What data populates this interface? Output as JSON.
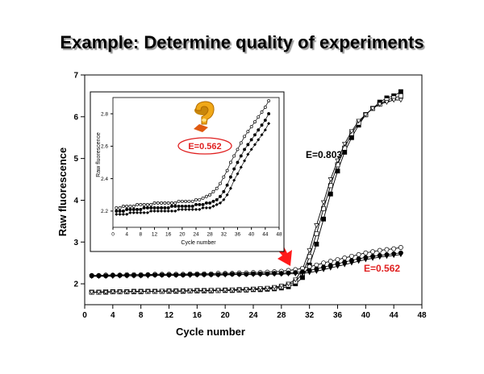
{
  "slide": {
    "title": "Example: Determine quality of experiments"
  },
  "chart_data": [
    {
      "type": "scatter",
      "xlabel": "Cycle number",
      "ylabel": "Raw fluorescence",
      "xlim": [
        0,
        48
      ],
      "ylim": [
        1.5,
        7
      ],
      "xticks": [
        0,
        4,
        8,
        12,
        16,
        20,
        24,
        28,
        32,
        36,
        40,
        44,
        48
      ],
      "yticks": [
        2,
        3,
        4,
        5,
        6,
        7
      ],
      "annotations": [
        {
          "text": "E=0.803",
          "color": "#000000"
        },
        {
          "text": "E=0.562",
          "color": "#e02020"
        }
      ],
      "marker_colors": {
        "arrow": "#ff1a1a",
        "annotation_red": "#e02020"
      },
      "series": [
        {
          "marker": "square-filled",
          "group": "E=0.803",
          "x": [
            1,
            2,
            3,
            4,
            5,
            6,
            7,
            8,
            9,
            10,
            11,
            12,
            13,
            14,
            15,
            16,
            17,
            18,
            19,
            20,
            21,
            22,
            23,
            24,
            25,
            26,
            27,
            28,
            29,
            30,
            31,
            32,
            33,
            34,
            35,
            36,
            37,
            38,
            39,
            40,
            41,
            42,
            43,
            44,
            45
          ],
          "y": [
            1.8,
            1.8,
            1.8,
            1.81,
            1.81,
            1.81,
            1.81,
            1.81,
            1.82,
            1.82,
            1.82,
            1.82,
            1.82,
            1.82,
            1.83,
            1.83,
            1.83,
            1.83,
            1.84,
            1.84,
            1.84,
            1.85,
            1.85,
            1.86,
            1.86,
            1.87,
            1.88,
            1.9,
            1.93,
            2.0,
            2.15,
            2.45,
            2.95,
            3.55,
            4.15,
            4.7,
            5.15,
            5.5,
            5.8,
            6.05,
            6.2,
            6.35,
            6.45,
            6.5,
            6.6
          ]
        },
        {
          "marker": "square-open",
          "group": "E=0.803",
          "x": [
            1,
            2,
            3,
            4,
            5,
            6,
            7,
            8,
            9,
            10,
            11,
            12,
            13,
            14,
            15,
            16,
            17,
            18,
            19,
            20,
            21,
            22,
            23,
            24,
            25,
            26,
            27,
            28,
            29,
            30,
            31,
            32,
            33,
            34,
            35,
            36,
            37,
            38,
            39,
            40,
            41,
            42,
            43,
            44,
            45
          ],
          "y": [
            1.8,
            1.8,
            1.81,
            1.81,
            1.81,
            1.81,
            1.82,
            1.82,
            1.82,
            1.82,
            1.82,
            1.83,
            1.83,
            1.83,
            1.83,
            1.84,
            1.84,
            1.84,
            1.84,
            1.85,
            1.85,
            1.86,
            1.86,
            1.87,
            1.88,
            1.89,
            1.9,
            1.93,
            1.97,
            2.05,
            2.25,
            2.65,
            3.2,
            3.8,
            4.35,
            4.85,
            5.25,
            5.6,
            5.85,
            6.05,
            6.2,
            6.3,
            6.4,
            6.45,
            6.5
          ]
        },
        {
          "marker": "triangle-down-open",
          "group": "E=0.803",
          "x": [
            1,
            2,
            3,
            4,
            5,
            6,
            7,
            8,
            9,
            10,
            11,
            12,
            13,
            14,
            15,
            16,
            17,
            18,
            19,
            20,
            21,
            22,
            23,
            24,
            25,
            26,
            27,
            28,
            29,
            30,
            31,
            32,
            33,
            34,
            35,
            36,
            37,
            38,
            39,
            40,
            41,
            42,
            43,
            44,
            45
          ],
          "y": [
            1.8,
            1.8,
            1.8,
            1.81,
            1.81,
            1.81,
            1.82,
            1.82,
            1.82,
            1.82,
            1.83,
            1.83,
            1.83,
            1.83,
            1.84,
            1.84,
            1.84,
            1.85,
            1.85,
            1.85,
            1.86,
            1.86,
            1.87,
            1.88,
            1.89,
            1.9,
            1.92,
            1.95,
            2.0,
            2.1,
            2.35,
            2.8,
            3.4,
            3.95,
            4.5,
            4.95,
            5.35,
            5.65,
            5.9,
            6.05,
            6.2,
            6.3,
            6.35,
            6.4,
            6.4
          ]
        },
        {
          "marker": "circle-open",
          "group": "E=0.562",
          "x": [
            1,
            2,
            3,
            4,
            5,
            6,
            7,
            8,
            9,
            10,
            11,
            12,
            13,
            14,
            15,
            16,
            17,
            18,
            19,
            20,
            21,
            22,
            23,
            24,
            25,
            26,
            27,
            28,
            29,
            30,
            31,
            32,
            33,
            34,
            35,
            36,
            37,
            38,
            39,
            40,
            41,
            42,
            43,
            44,
            45
          ],
          "y": [
            2.2,
            2.2,
            2.21,
            2.21,
            2.21,
            2.22,
            2.22,
            2.22,
            2.22,
            2.23,
            2.23,
            2.23,
            2.23,
            2.23,
            2.24,
            2.24,
            2.24,
            2.24,
            2.25,
            2.25,
            2.25,
            2.26,
            2.26,
            2.27,
            2.27,
            2.28,
            2.29,
            2.3,
            2.32,
            2.34,
            2.37,
            2.41,
            2.45,
            2.5,
            2.54,
            2.58,
            2.62,
            2.66,
            2.7,
            2.74,
            2.77,
            2.8,
            2.82,
            2.84,
            2.87
          ]
        },
        {
          "marker": "circle-filled",
          "group": "E=0.562",
          "x": [
            1,
            2,
            3,
            4,
            5,
            6,
            7,
            8,
            9,
            10,
            11,
            12,
            13,
            14,
            15,
            16,
            17,
            18,
            19,
            20,
            21,
            22,
            23,
            24,
            25,
            26,
            27,
            28,
            29,
            30,
            31,
            32,
            33,
            34,
            35,
            36,
            37,
            38,
            39,
            40,
            41,
            42,
            43,
            44,
            45
          ],
          "y": [
            2.19,
            2.19,
            2.19,
            2.2,
            2.2,
            2.2,
            2.2,
            2.2,
            2.21,
            2.21,
            2.21,
            2.21,
            2.21,
            2.21,
            2.22,
            2.22,
            2.22,
            2.22,
            2.22,
            2.23,
            2.23,
            2.23,
            2.23,
            2.24,
            2.24,
            2.24,
            2.25,
            2.25,
            2.26,
            2.27,
            2.29,
            2.32,
            2.36,
            2.4,
            2.44,
            2.48,
            2.52,
            2.56,
            2.6,
            2.63,
            2.66,
            2.68,
            2.7,
            2.72,
            2.74
          ]
        },
        {
          "marker": "triangle-down-filled",
          "group": "E=0.562",
          "x": [
            1,
            2,
            3,
            4,
            5,
            6,
            7,
            8,
            9,
            10,
            11,
            12,
            13,
            14,
            15,
            16,
            17,
            18,
            19,
            20,
            21,
            22,
            23,
            24,
            25,
            26,
            27,
            28,
            29,
            30,
            31,
            32,
            33,
            34,
            35,
            36,
            37,
            38,
            39,
            40,
            41,
            42,
            43,
            44,
            45
          ],
          "y": [
            2.18,
            2.18,
            2.18,
            2.18,
            2.19,
            2.19,
            2.19,
            2.19,
            2.19,
            2.2,
            2.2,
            2.2,
            2.2,
            2.2,
            2.2,
            2.21,
            2.21,
            2.21,
            2.21,
            2.21,
            2.22,
            2.22,
            2.22,
            2.22,
            2.22,
            2.23,
            2.23,
            2.23,
            2.24,
            2.24,
            2.25,
            2.27,
            2.3,
            2.34,
            2.38,
            2.42,
            2.46,
            2.5,
            2.54,
            2.58,
            2.61,
            2.64,
            2.66,
            2.68,
            2.7
          ]
        }
      ]
    },
    {
      "type": "scatter",
      "xlabel": "Cycle number",
      "ylabel": "Raw fluorescence",
      "xlim": [
        0,
        48
      ],
      "ylim": [
        2.1,
        2.9
      ],
      "xticks": [
        0,
        4,
        8,
        12,
        16,
        20,
        24,
        28,
        32,
        36,
        40,
        44,
        48
      ],
      "yticks": [
        2.2,
        2.4,
        2.6,
        2.8
      ],
      "annotations": [
        {
          "text": "E=0.562",
          "color": "#e02020"
        }
      ],
      "icon": "question-mark-icon",
      "series": [
        {
          "marker": "circle-open",
          "x": [
            1,
            2,
            3,
            4,
            5,
            6,
            7,
            8,
            9,
            10,
            11,
            12,
            13,
            14,
            15,
            16,
            17,
            18,
            19,
            20,
            21,
            22,
            23,
            24,
            25,
            26,
            27,
            28,
            29,
            30,
            31,
            32,
            33,
            34,
            35,
            36,
            37,
            38,
            39,
            40,
            41,
            42,
            43,
            44,
            45
          ],
          "y": [
            2.22,
            2.22,
            2.23,
            2.23,
            2.23,
            2.23,
            2.24,
            2.24,
            2.24,
            2.24,
            2.24,
            2.25,
            2.25,
            2.25,
            2.25,
            2.25,
            2.25,
            2.25,
            2.26,
            2.26,
            2.26,
            2.26,
            2.26,
            2.27,
            2.27,
            2.28,
            2.29,
            2.3,
            2.32,
            2.34,
            2.37,
            2.41,
            2.45,
            2.5,
            2.54,
            2.58,
            2.62,
            2.66,
            2.69,
            2.72,
            2.75,
            2.78,
            2.81,
            2.84,
            2.88
          ]
        },
        {
          "marker": "circle-filled",
          "x": [
            1,
            2,
            3,
            4,
            5,
            6,
            7,
            8,
            9,
            10,
            11,
            12,
            13,
            14,
            15,
            16,
            17,
            18,
            19,
            20,
            21,
            22,
            23,
            24,
            25,
            26,
            27,
            28,
            29,
            30,
            31,
            32,
            33,
            34,
            35,
            36,
            37,
            38,
            39,
            40,
            41,
            42,
            43,
            44,
            45
          ],
          "y": [
            2.2,
            2.2,
            2.2,
            2.21,
            2.21,
            2.21,
            2.21,
            2.21,
            2.22,
            2.22,
            2.22,
            2.22,
            2.22,
            2.22,
            2.22,
            2.22,
            2.23,
            2.23,
            2.23,
            2.23,
            2.23,
            2.23,
            2.23,
            2.24,
            2.24,
            2.24,
            2.25,
            2.25,
            2.26,
            2.27,
            2.29,
            2.32,
            2.36,
            2.41,
            2.46,
            2.5,
            2.54,
            2.58,
            2.61,
            2.64,
            2.67,
            2.7,
            2.73,
            2.76,
            2.8
          ]
        },
        {
          "marker": "diamond-filled",
          "x": [
            1,
            2,
            3,
            4,
            5,
            6,
            7,
            8,
            9,
            10,
            11,
            12,
            13,
            14,
            15,
            16,
            17,
            18,
            19,
            20,
            21,
            22,
            23,
            24,
            25,
            26,
            27,
            28,
            29,
            30,
            31,
            32,
            33,
            34,
            35,
            36,
            37,
            38,
            39,
            40,
            41,
            42,
            43,
            44,
            45
          ],
          "y": [
            2.18,
            2.18,
            2.18,
            2.18,
            2.19,
            2.19,
            2.19,
            2.19,
            2.19,
            2.19,
            2.2,
            2.2,
            2.2,
            2.2,
            2.2,
            2.2,
            2.2,
            2.2,
            2.21,
            2.21,
            2.21,
            2.21,
            2.21,
            2.21,
            2.21,
            2.22,
            2.22,
            2.22,
            2.23,
            2.24,
            2.25,
            2.27,
            2.3,
            2.34,
            2.39,
            2.43,
            2.47,
            2.51,
            2.55,
            2.58,
            2.61,
            2.64,
            2.67,
            2.7,
            2.74
          ]
        }
      ]
    }
  ]
}
